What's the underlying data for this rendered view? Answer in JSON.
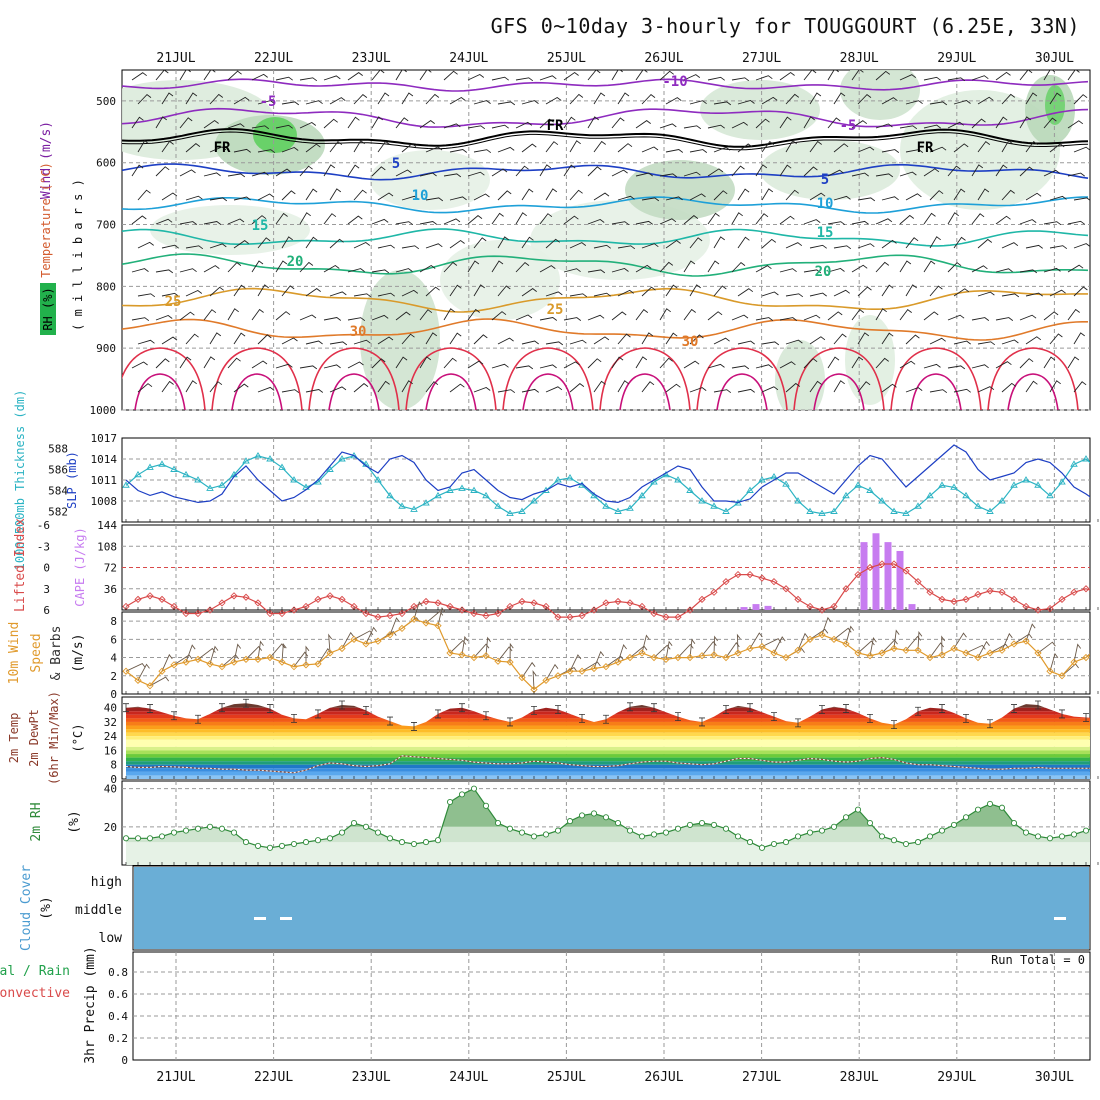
{
  "title": "GFS 0~10day 3-hourly for TOUGGOURT (6.25E, 33N)",
  "date_labels": [
    "21JUL",
    "22JUL",
    "23JUL",
    "24JUL",
    "25JUL",
    "26JUL",
    "27JUL",
    "28JUL",
    "29JUL",
    "30JUL"
  ],
  "run_total": "Run Total = 0",
  "colors": {
    "grid": "#9a9a9a",
    "rh_green": "#2f8a3a",
    "slp": "#1d3fc4",
    "thickness": "#2bb3c3",
    "cape": "#c77cf0",
    "lifted": "#d94a4a",
    "wind10": "#e09a2c",
    "barbs": "#6b5a4a",
    "cloud": "#6aaed6",
    "temp_dark": "#6b3b30",
    "frz": "#000000"
  },
  "panel_labels": {
    "upper": {
      "wind": "Wind (m/s)",
      "temperature": "Temperature (°C)",
      "rh": "RH (%)",
      "pressure": "( m i l l i b a r s )"
    },
    "slp": {
      "thickness": "1000-500mb Thickness (dm)",
      "slp": "SLP (mb)"
    },
    "cape": {
      "lifted": "Lifted Index",
      "cape": "CAPE (J/kg)"
    },
    "wind10": {
      "title": "10m Wind",
      "speed": "Speed",
      "barbs": "& Barbs",
      "unit": "(m/s)"
    },
    "temp2m": {
      "temp": "2m Temp",
      "dewpt": "2m DewPt",
      "minmax": "(6hr Min/Max)",
      "unit": "(°C)"
    },
    "rh2m": {
      "title": "2m RH",
      "unit": "(%)"
    },
    "cloud": {
      "title": "Cloud Cover",
      "unit": "(%)",
      "levels": [
        "high",
        "middle",
        "low"
      ]
    },
    "precip": {
      "total": "Total / Rain",
      "conv": "Convective",
      "title": "3hr Precip (mm)"
    }
  },
  "chart_data": [
    {
      "type": "contour",
      "panel": "upper-air",
      "y_ticks": [
        500,
        600,
        700,
        800,
        900,
        1000
      ],
      "isotherm_labels": [
        {
          "value": "-10"
        },
        {
          "value": "-5"
        },
        {
          "value": "FR"
        },
        {
          "value": "5"
        },
        {
          "value": "10"
        },
        {
          "value": "15"
        },
        {
          "value": "20"
        },
        {
          "value": "25"
        },
        {
          "value": "30"
        }
      ]
    },
    {
      "type": "line",
      "panel": "slp-thickness",
      "slp_ticks": [
        1008,
        1011,
        1014,
        1017
      ],
      "thickness_ticks": [
        582,
        584,
        586,
        588
      ],
      "series": [
        {
          "name": "SLP (mb)",
          "values": [
            1011.0,
            1009.5,
            1008.8,
            1009.3,
            1008.6,
            1008.2,
            1007.8,
            1008.0,
            1009.0,
            1011.5,
            1013.0,
            1011.0,
            1009.5,
            1008.0,
            1008.5,
            1009.6,
            1011.0,
            1013.0,
            1015.0,
            1014.5,
            1013.0,
            1012.0,
            1014.0,
            1014.5,
            1013.5,
            1011.0,
            1009.5,
            1010.0,
            1012.0,
            1012.5,
            1011.0,
            1009.5,
            1008.5,
            1008.2,
            1009.0,
            1009.5,
            1010.5,
            1010.0,
            1010.5,
            1009.0,
            1008.0,
            1007.8,
            1008.5,
            1010.0,
            1011.0,
            1012.0,
            1013.0,
            1012.5,
            1010.0,
            1008.0,
            1008.0,
            1007.8,
            1008.3,
            1010.0,
            1011.0,
            1012.0,
            1012.0,
            1011.0,
            1010.0,
            1009.0,
            1011.0,
            1013.0,
            1014.5,
            1014.0,
            1012.0,
            1010.0,
            1011.5,
            1013.0,
            1014.5,
            1016.0,
            1015.0,
            1012.5,
            1011.0,
            1011.5,
            1012.0,
            1013.5,
            1014.0,
            1013.5,
            1012.0,
            1010.0,
            1009.0,
            1007.8,
            1008.3
          ]
        },
        {
          "name": "1000-500mb Thickness (dm)",
          "values": [
            584.5,
            585.5,
            586.2,
            586.5,
            586.0,
            585.5,
            585.0,
            584.2,
            584.5,
            585.5,
            586.8,
            587.3,
            587.0,
            586.2,
            585.0,
            584.3,
            584.8,
            586.0,
            587.0,
            587.3,
            586.5,
            585.0,
            583.5,
            582.5,
            582.2,
            582.8,
            583.5,
            584.0,
            584.2,
            584.0,
            583.5,
            582.5,
            581.8,
            582.0,
            583.0,
            584.0,
            585.0,
            585.2,
            584.5,
            583.5,
            582.5,
            582.0,
            582.3,
            583.5,
            584.8,
            585.5,
            585.0,
            584.0,
            583.0,
            582.5,
            582.0,
            582.8,
            584.0,
            585.0,
            585.3,
            584.6,
            583.0,
            582.0,
            581.8,
            582.0,
            583.5,
            584.5,
            584.0,
            583.0,
            582.0,
            581.8,
            582.5,
            583.5,
            584.5,
            584.3,
            583.5,
            582.5,
            582.0,
            583.0,
            584.5,
            585.0,
            584.5,
            583.5,
            584.8,
            586.5,
            587.0,
            586.0,
            585.5
          ]
        }
      ]
    },
    {
      "type": "bar",
      "panel": "cape-lifted-index",
      "cape_ticks": [
        36,
        72,
        108,
        144
      ],
      "lifted_ticks": [
        -6,
        -3,
        0,
        3,
        6
      ],
      "series": [
        {
          "name": "CAPE (J/kg)",
          "bars": [
            {
              "x": 51.5,
              "value": 5
            },
            {
              "x": 52.5,
              "value": 10
            },
            {
              "x": 53.5,
              "value": 7
            },
            {
              "x": 61.5,
              "value": 115
            },
            {
              "x": 62.5,
              "value": 130
            },
            {
              "x": 63.5,
              "value": 115
            },
            {
              "x": 64.5,
              "value": 100
            },
            {
              "x": 65.5,
              "value": 10
            }
          ]
        },
        {
          "name": "Lifted Index",
          "values": [
            5.5,
            4.5,
            4.0,
            4.5,
            5.5,
            6.5,
            6.5,
            6.0,
            5.0,
            4.0,
            4.2,
            5.0,
            6.5,
            6.5,
            6.0,
            5.5,
            4.5,
            4.0,
            4.5,
            5.5,
            6.5,
            7.0,
            6.8,
            6.5,
            5.5,
            4.8,
            5.0,
            5.5,
            6.0,
            6.5,
            6.8,
            6.5,
            5.5,
            4.8,
            5.0,
            5.5,
            7.0,
            7.0,
            6.8,
            6.0,
            5.0,
            4.8,
            5.0,
            5.5,
            6.5,
            7.0,
            7.0,
            6.0,
            4.5,
            3.5,
            2.0,
            1.0,
            1.0,
            1.5,
            2.0,
            3.0,
            4.5,
            5.5,
            6.0,
            5.5,
            3.0,
            1.0,
            0.0,
            -0.5,
            -0.5,
            0.5,
            2.0,
            3.5,
            4.5,
            4.8,
            4.5,
            3.8,
            3.3,
            3.5,
            4.5,
            5.5,
            6.0,
            5.8,
            4.5,
            3.5,
            3.0,
            3.5,
            4.5
          ]
        }
      ]
    },
    {
      "type": "line",
      "panel": "10m-wind",
      "y_ticks": [
        0,
        2,
        4,
        6,
        8
      ],
      "series": [
        {
          "name": "10m Wind Speed",
          "values": [
            2.5,
            1.5,
            0.9,
            2.5,
            3.2,
            3.5,
            3.8,
            3.3,
            3.0,
            3.5,
            3.8,
            3.8,
            4.0,
            3.5,
            3.0,
            3.2,
            3.3,
            4.5,
            5.0,
            6.0,
            5.5,
            5.8,
            6.5,
            7.2,
            8.2,
            7.8,
            7.5,
            4.5,
            4.3,
            4.0,
            4.2,
            3.6,
            3.5,
            1.8,
            0.5,
            1.5,
            2.0,
            2.5,
            2.5,
            2.8,
            3.0,
            3.5,
            4.0,
            4.5,
            4.0,
            3.8,
            4.0,
            4.0,
            4.2,
            4.3,
            4.0,
            4.5,
            5.0,
            5.2,
            4.5,
            4.0,
            4.8,
            6.0,
            6.5,
            6.0,
            5.5,
            4.5,
            4.2,
            4.5,
            5.0,
            4.8,
            4.8,
            4.0,
            4.3,
            5.0,
            4.5,
            4.0,
            4.5,
            4.8,
            5.5,
            5.8,
            4.5,
            2.5,
            2.0,
            3.5,
            4.0,
            5.0,
            5.5
          ]
        }
      ]
    },
    {
      "type": "area",
      "panel": "2m-temperature",
      "y_ticks": [
        0,
        8,
        16,
        24,
        32,
        40
      ],
      "series": [
        {
          "name": "2m Temp",
          "values": [
            40.0,
            40.5,
            39.5,
            37.5,
            35.5,
            34.0,
            33.5,
            36.5,
            40.0,
            42.0,
            42.5,
            41.5,
            39.5,
            36.0,
            34.0,
            33.5,
            36.5,
            40.0,
            41.5,
            41.0,
            38.5,
            35.0,
            32.5,
            30.0,
            29.5,
            32.0,
            36.5,
            39.5,
            40.0,
            38.0,
            35.5,
            33.5,
            32.0,
            34.5,
            38.5,
            40.0,
            39.0,
            36.5,
            34.0,
            32.0,
            33.5,
            37.5,
            40.5,
            41.5,
            40.0,
            37.5,
            35.0,
            33.0,
            32.0,
            35.0,
            39.0,
            41.0,
            40.0,
            37.5,
            35.0,
            32.5,
            31.5,
            35.0,
            39.0,
            40.5,
            39.5,
            37.0,
            34.0,
            31.5,
            30.5,
            33.5,
            38.0,
            40.0,
            39.5,
            37.0,
            34.0,
            31.5,
            31.0,
            34.5,
            39.5,
            42.0,
            41.5,
            39.0,
            36.5,
            35.0,
            34.5,
            34.0,
            33.5
          ]
        },
        {
          "name": "2m DewPt",
          "values": [
            7.0,
            6.5,
            6.5,
            7.0,
            6.8,
            6.5,
            6.0,
            6.0,
            5.5,
            5.5,
            5.0,
            5.0,
            4.5,
            4.0,
            3.5,
            5.0,
            7.5,
            9.0,
            8.5,
            7.5,
            7.0,
            7.5,
            8.5,
            13.0,
            12.5,
            12.0,
            11.5,
            11.0,
            10.5,
            9.5,
            9.0,
            8.5,
            8.5,
            9.0,
            10.0,
            9.5,
            9.0,
            8.0,
            7.5,
            7.0,
            7.0,
            7.5,
            8.5,
            9.5,
            10.0,
            10.0,
            9.0,
            8.5,
            8.0,
            8.5,
            10.0,
            11.5,
            11.5,
            10.5,
            9.5,
            9.5,
            10.5,
            11.5,
            11.0,
            10.0,
            9.5,
            10.0,
            11.5,
            12.0,
            11.0,
            9.0,
            8.0,
            8.0,
            7.5,
            7.0,
            6.5,
            6.0,
            5.5,
            5.5,
            6.0,
            6.0,
            6.5,
            6.0,
            6.0,
            6.0,
            6.0,
            6.0,
            6.0
          ]
        }
      ]
    },
    {
      "type": "area",
      "panel": "2m-rh",
      "y_ticks": [
        20,
        40
      ],
      "series": [
        {
          "name": "2m RH",
          "values": [
            14,
            14,
            14,
            15,
            17,
            18,
            19,
            20,
            19,
            17,
            12,
            10,
            9,
            10,
            11,
            12,
            13,
            14,
            17,
            22,
            20,
            17,
            14,
            12,
            11,
            12,
            13,
            33,
            37,
            40,
            31,
            22,
            19,
            17,
            15,
            16,
            18,
            23,
            26,
            27,
            25,
            22,
            18,
            15,
            16,
            17,
            19,
            21,
            22,
            21,
            19,
            15,
            12,
            9,
            11,
            12,
            15,
            17,
            18,
            20,
            25,
            29,
            22,
            15,
            13,
            11,
            12,
            15,
            18,
            21,
            25,
            29,
            32,
            30,
            22,
            17,
            15,
            14,
            15,
            16,
            18,
            20,
            22,
            24,
            27
          ]
        }
      ]
    },
    {
      "type": "heatmap",
      "panel": "cloud-cover",
      "rows": [
        "high",
        "middle",
        "low"
      ],
      "note": "uniform fill across panel with small gaps near 22JUL and 30JUL (middle)"
    },
    {
      "type": "line",
      "panel": "3hr-precip",
      "y_ticks": [
        0,
        0.2,
        0.4,
        0.6,
        0.8
      ],
      "series": [
        {
          "name": "Total / Rain",
          "values": []
        },
        {
          "name": "Convective",
          "values": []
        }
      ]
    }
  ]
}
